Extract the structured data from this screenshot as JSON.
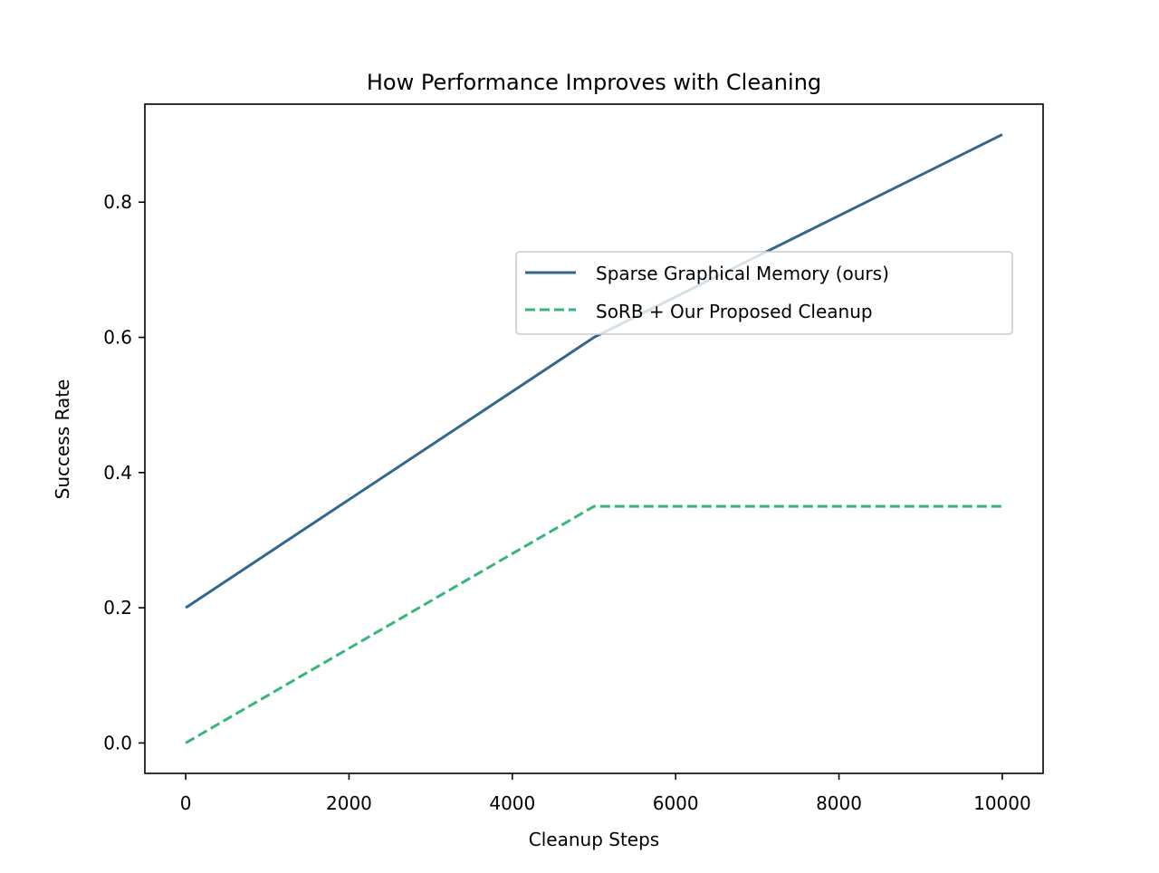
{
  "chart_data": {
    "type": "line",
    "title": "How Performance Improves with Cleaning",
    "xlabel": "Cleanup Steps",
    "ylabel": "Success Rate",
    "xlim": [
      -500,
      10500
    ],
    "ylim": [
      -0.045,
      0.945
    ],
    "xticks": [
      0,
      2000,
      4000,
      6000,
      8000,
      10000
    ],
    "xtick_labels": [
      "0",
      "2000",
      "4000",
      "6000",
      "8000",
      "10000"
    ],
    "yticks": [
      0.0,
      0.2,
      0.4,
      0.6,
      0.8
    ],
    "ytick_labels": [
      "0.0",
      "0.2",
      "0.4",
      "0.6",
      "0.8"
    ],
    "grid": false,
    "legend_position": "center-right",
    "series": [
      {
        "name": "Sparse Graphical Memory (ours)",
        "x": [
          0,
          5000,
          10000
        ],
        "y": [
          0.2,
          0.6,
          0.9
        ],
        "color": "#31688e",
        "style": "solid"
      },
      {
        "name": "SoRB + Our Proposed Cleanup",
        "x": [
          0,
          5000,
          10000
        ],
        "y": [
          0.0,
          0.35,
          0.35
        ],
        "color": "#35b779",
        "style": "dashed"
      }
    ]
  }
}
